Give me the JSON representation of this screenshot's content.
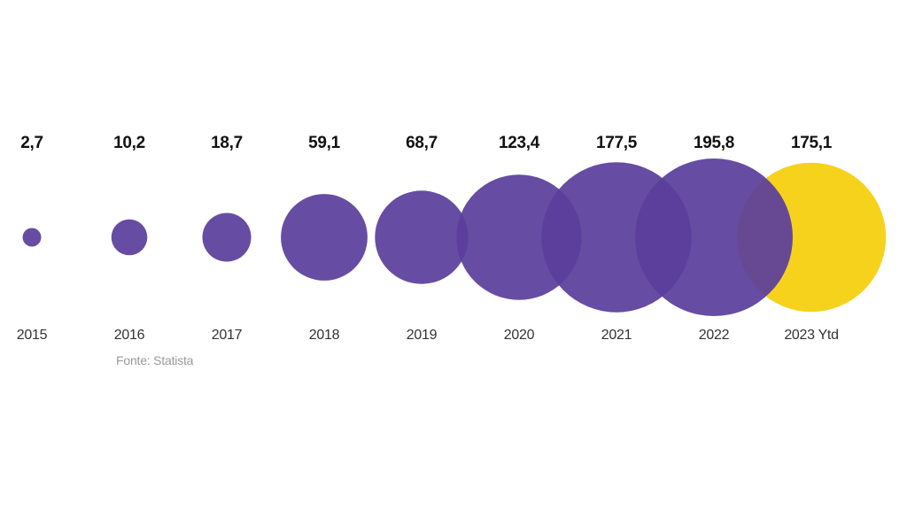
{
  "chart_data": {
    "type": "bubble",
    "categories": [
      "2015",
      "2016",
      "2017",
      "2018",
      "2019",
      "2020",
      "2021",
      "2022",
      "2023 Ytd"
    ],
    "values": [
      2.7,
      10.2,
      18.7,
      59.1,
      68.7,
      123.4,
      177.5,
      195.8,
      175.1
    ],
    "value_labels": [
      "2,7",
      "10,2",
      "18,7",
      "59,1",
      "68,7",
      "123,4",
      "177,5",
      "195,8",
      "175,1"
    ],
    "highlight_category": "2023 Ytd",
    "colors": {
      "default": "#5b3e9c",
      "highlight": "#f7d21c"
    },
    "legend": "none",
    "grid": false
  },
  "source": "Fonte: Statista"
}
